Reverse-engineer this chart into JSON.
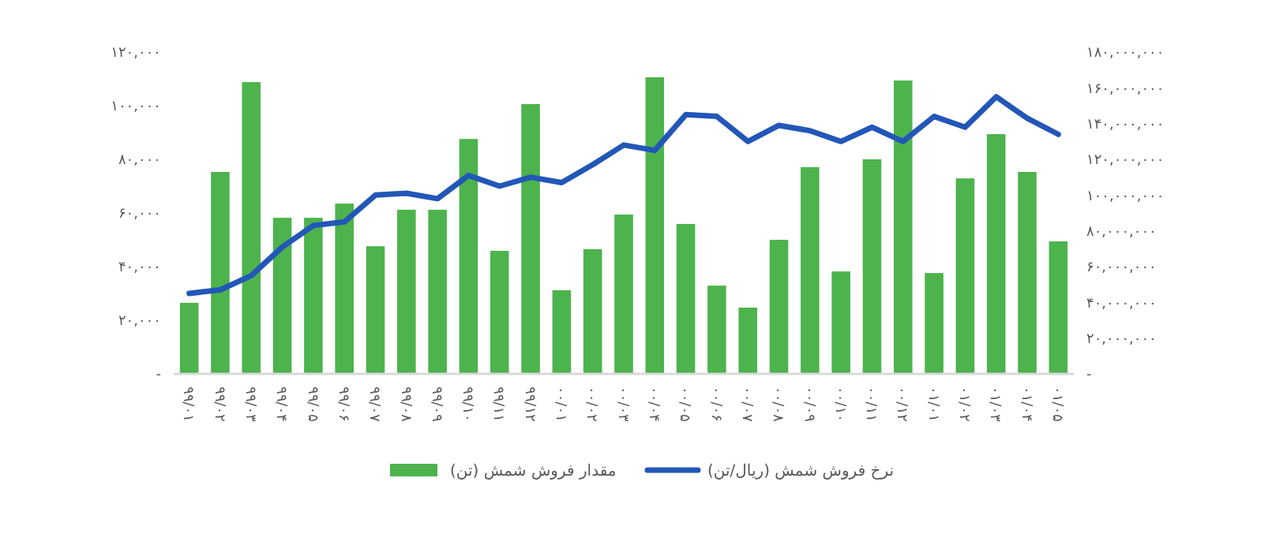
{
  "chart_data": {
    "type": "bar",
    "categories": [
      "۹۹/۰۱",
      "۹۹/۰۲",
      "۹۹/۰۳",
      "۹۹/۰۴",
      "۹۹/۰۵",
      "۹۹/۰۶",
      "۹۹/۰۷",
      "۹۹/۰۸",
      "۹۹/۰۹",
      "۹۹/۱۰",
      "۹۹/۱۱",
      "۹۹/۱۲",
      "۰۰/۰۱",
      "۰۰/۰۲",
      "۰۰/۰۳",
      "۰۰/۰۴",
      "۰۰/۰۵",
      "۰۰/۰۶",
      "۰۰/۰۷",
      "۰۰/۰۸",
      "۰۰/۰۹",
      "۰۰/۱۰",
      "۰۰/۱۱",
      "۰۰/۱۲",
      "۰۱/۰۱",
      "۰۱/۰۲",
      "۰۱/۰۳",
      "۰۱/۰۴",
      "۰۱/۰۵"
    ],
    "series": [
      {
        "name": "مقدار فروش شمش (تن)",
        "color": "#4db34d",
        "values": [
          26500,
          75300,
          108800,
          58200,
          58200,
          63500,
          47600,
          61200,
          61200,
          87600,
          45900,
          100600,
          31200,
          46500,
          59400,
          110600,
          55900,
          32900,
          24700,
          50000,
          77100,
          38200,
          80000,
          109400,
          37600,
          72900,
          89400,
          75300,
          49400
        ]
      },
      {
        "name": "نرخ فروش شمش (ریال/تن)",
        "type": "line",
        "axis": "y2",
        "color": "#2257b8",
        "values": [
          45000000,
          47000000,
          55000000,
          71000000,
          83000000,
          85000000,
          100000000,
          101000000,
          98000000,
          111000000,
          105000000,
          110000000,
          107000000,
          117000000,
          128000000,
          125000000,
          145000000,
          144000000,
          130000000,
          139000000,
          136000000,
          130000000,
          138000000,
          130000000,
          144000000,
          138000000,
          155000000,
          143000000,
          134000000
        ]
      }
    ],
    "ylim": [
      0,
      120000
    ],
    "yticks": [
      {
        "value": 0,
        "label": "-"
      },
      {
        "value": 20000,
        "label": "۲۰,۰۰۰"
      },
      {
        "value": 40000,
        "label": "۴۰,۰۰۰"
      },
      {
        "value": 60000,
        "label": "۶۰,۰۰۰"
      },
      {
        "value": 80000,
        "label": "۸۰,۰۰۰"
      },
      {
        "value": 100000,
        "label": "۱۰۰,۰۰۰"
      },
      {
        "value": 120000,
        "label": "۱۲۰,۰۰۰"
      }
    ],
    "y2lim": [
      0,
      180000000
    ],
    "y2ticks": [
      {
        "value": 0,
        "label": "-"
      },
      {
        "value": 20000000,
        "label": "۲۰,۰۰۰,۰۰۰"
      },
      {
        "value": 40000000,
        "label": "۴۰,۰۰۰,۰۰۰"
      },
      {
        "value": 60000000,
        "label": "۶۰,۰۰۰,۰۰۰"
      },
      {
        "value": 80000000,
        "label": "۸۰,۰۰۰,۰۰۰"
      },
      {
        "value": 100000000,
        "label": "۱۰۰,۰۰۰,۰۰۰"
      },
      {
        "value": 120000000,
        "label": "۱۲۰,۰۰۰,۰۰۰"
      },
      {
        "value": 140000000,
        "label": "۱۴۰,۰۰۰,۰۰۰"
      },
      {
        "value": 160000000,
        "label": "۱۶۰,۰۰۰,۰۰۰"
      },
      {
        "value": 180000000,
        "label": "۱۸۰,۰۰۰,۰۰۰"
      }
    ],
    "grid": false,
    "legend": "bottom",
    "marker": "none",
    "line_style": "solid"
  }
}
